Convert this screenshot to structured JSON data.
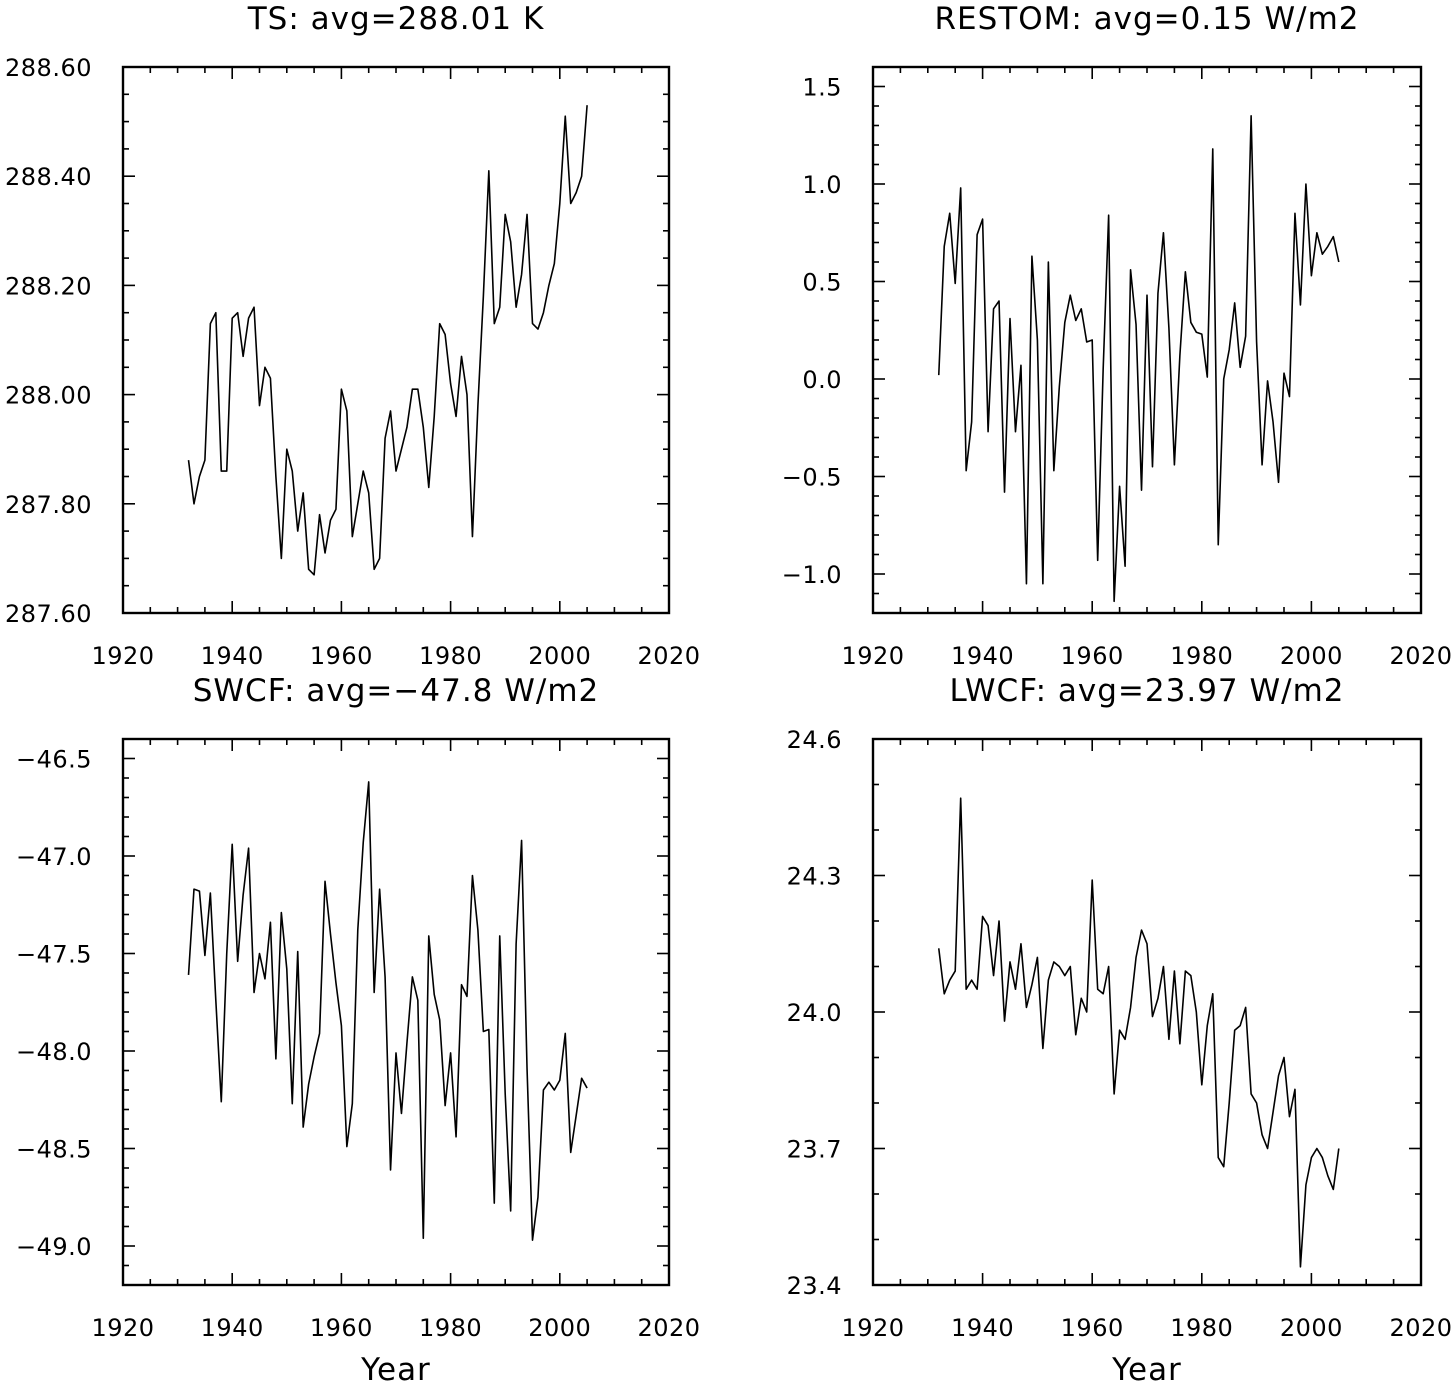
{
  "chart_data": [
    {
      "type": "line",
      "title": "TS: avg=288.01 K",
      "xlabel": "",
      "ylabel": "",
      "xlim": [
        1920,
        2020
      ],
      "ylim": [
        287.6,
        288.6
      ],
      "x_ticks": [
        1920,
        1940,
        1960,
        1980,
        2000,
        2020
      ],
      "x_tick_labels": [
        "1920",
        "1940",
        "1960",
        "1980",
        "2000",
        "2020"
      ],
      "y_ticks": [
        287.6,
        287.8,
        288.0,
        288.2,
        288.4,
        288.6
      ],
      "y_tick_labels": [
        "287.60",
        "287.80",
        "288.00",
        "288.20",
        "288.40",
        "288.60"
      ],
      "y_minor_step": 0.05,
      "x": [
        1932,
        1933,
        1934,
        1935,
        1936,
        1937,
        1938,
        1939,
        1940,
        1941,
        1942,
        1943,
        1944,
        1945,
        1946,
        1947,
        1948,
        1949,
        1950,
        1951,
        1952,
        1953,
        1954,
        1955,
        1956,
        1957,
        1958,
        1959,
        1960,
        1961,
        1962,
        1963,
        1964,
        1965,
        1966,
        1967,
        1968,
        1969,
        1970,
        1971,
        1972,
        1973,
        1974,
        1975,
        1976,
        1977,
        1978,
        1979,
        1980,
        1981,
        1982,
        1983,
        1984,
        1985,
        1986,
        1987,
        1988,
        1989,
        1990,
        1991,
        1992,
        1993,
        1994,
        1995,
        1996,
        1997,
        1998,
        1999,
        2000,
        2001,
        2002,
        2003,
        2004,
        2005
      ],
      "values": [
        287.88,
        287.8,
        287.85,
        287.88,
        288.13,
        288.15,
        287.86,
        287.86,
        288.14,
        288.15,
        288.07,
        288.14,
        288.16,
        287.98,
        288.05,
        288.03,
        287.85,
        287.7,
        287.9,
        287.86,
        287.75,
        287.82,
        287.68,
        287.67,
        287.78,
        287.71,
        287.77,
        287.79,
        288.01,
        287.97,
        287.74,
        287.8,
        287.86,
        287.82,
        287.68,
        287.7,
        287.92,
        287.97,
        287.86,
        287.9,
        287.94,
        288.01,
        288.01,
        287.94,
        287.83,
        287.96,
        288.13,
        288.11,
        288.02,
        287.96,
        288.07,
        288.0,
        287.74,
        287.98,
        288.18,
        288.41,
        288.13,
        288.16,
        288.33,
        288.28,
        288.16,
        288.22,
        288.33,
        288.13,
        288.12,
        288.15,
        288.2,
        288.24,
        288.35,
        288.51,
        288.35,
        288.37,
        288.4,
        288.53
      ]
    },
    {
      "type": "line",
      "title": "RESTOM: avg=0.15 W/m2",
      "xlabel": "",
      "ylabel": "",
      "xlim": [
        1920,
        2020
      ],
      "ylim": [
        -1.2,
        1.6
      ],
      "x_ticks": [
        1920,
        1940,
        1960,
        1980,
        2000,
        2020
      ],
      "x_tick_labels": [
        "1920",
        "1940",
        "1960",
        "1980",
        "2000",
        "2020"
      ],
      "y_ticks": [
        -1.0,
        -0.5,
        0.0,
        0.5,
        1.0,
        1.5
      ],
      "y_tick_labels": [
        "−1.0",
        "−0.5",
        "0.0",
        "0.5",
        "1.0",
        "1.5"
      ],
      "y_minor_step": 0.1,
      "x": [
        1932,
        1933,
        1934,
        1935,
        1936,
        1937,
        1938,
        1939,
        1940,
        1941,
        1942,
        1943,
        1944,
        1945,
        1946,
        1947,
        1948,
        1949,
        1950,
        1951,
        1952,
        1953,
        1954,
        1955,
        1956,
        1957,
        1958,
        1959,
        1960,
        1961,
        1962,
        1963,
        1964,
        1965,
        1966,
        1967,
        1968,
        1969,
        1970,
        1971,
        1972,
        1973,
        1974,
        1975,
        1976,
        1977,
        1978,
        1979,
        1980,
        1981,
        1982,
        1983,
        1984,
        1985,
        1986,
        1987,
        1988,
        1989,
        1990,
        1991,
        1992,
        1993,
        1994,
        1995,
        1996,
        1997,
        1998,
        1999,
        2000,
        2001,
        2002,
        2003,
        2004,
        2005
      ],
      "values": [
        0.02,
        0.68,
        0.85,
        0.49,
        0.98,
        -0.47,
        -0.22,
        0.74,
        0.82,
        -0.27,
        0.36,
        0.4,
        -0.58,
        0.31,
        -0.27,
        0.07,
        -1.05,
        0.63,
        0.2,
        -1.05,
        0.6,
        -0.47,
        -0.04,
        0.29,
        0.43,
        0.3,
        0.36,
        0.19,
        0.2,
        -0.93,
        0.05,
        0.84,
        -1.14,
        -0.55,
        -0.96,
        0.56,
        0.28,
        -0.57,
        0.43,
        -0.45,
        0.44,
        0.75,
        0.26,
        -0.44,
        0.12,
        0.55,
        0.29,
        0.24,
        0.23,
        0.01,
        1.18,
        -0.85,
        0.0,
        0.15,
        0.39,
        0.06,
        0.22,
        1.35,
        0.19,
        -0.44,
        -0.01,
        -0.22,
        -0.53,
        0.03,
        -0.09,
        0.85,
        0.38,
        1.0,
        0.53,
        0.75,
        0.64,
        0.68,
        0.73,
        0.6
      ]
    },
    {
      "type": "line",
      "title": "SWCF: avg=−47.8 W/m2",
      "xlabel": "Year",
      "ylabel": "",
      "xlim": [
        1920,
        2020
      ],
      "ylim": [
        -49.2,
        -46.4
      ],
      "x_ticks": [
        1920,
        1940,
        1960,
        1980,
        2000,
        2020
      ],
      "x_tick_labels": [
        "1920",
        "1940",
        "1960",
        "1980",
        "2000",
        "2020"
      ],
      "y_ticks": [
        -49.0,
        -48.5,
        -48.0,
        -47.5,
        -47.0,
        -46.5
      ],
      "y_tick_labels": [
        "−49.0",
        "−48.5",
        "−48.0",
        "−47.5",
        "−47.0",
        "−46.5"
      ],
      "y_minor_step": 0.1,
      "x": [
        1932,
        1933,
        1934,
        1935,
        1936,
        1937,
        1938,
        1939,
        1940,
        1941,
        1942,
        1943,
        1944,
        1945,
        1946,
        1947,
        1948,
        1949,
        1950,
        1951,
        1952,
        1953,
        1954,
        1955,
        1956,
        1957,
        1958,
        1959,
        1960,
        1961,
        1962,
        1963,
        1964,
        1965,
        1966,
        1967,
        1968,
        1969,
        1970,
        1971,
        1972,
        1973,
        1974,
        1975,
        1976,
        1977,
        1978,
        1979,
        1980,
        1981,
        1982,
        1983,
        1984,
        1985,
        1986,
        1987,
        1988,
        1989,
        1990,
        1991,
        1992,
        1993,
        1994,
        1995,
        1996,
        1997,
        1998,
        1999,
        2000,
        2001,
        2002,
        2003,
        2004,
        2005
      ],
      "values": [
        -47.61,
        -47.17,
        -47.18,
        -47.51,
        -47.19,
        -47.74,
        -48.26,
        -47.5,
        -46.94,
        -47.54,
        -47.2,
        -46.96,
        -47.7,
        -47.5,
        -47.63,
        -47.34,
        -48.04,
        -47.29,
        -47.58,
        -48.27,
        -47.49,
        -48.39,
        -48.17,
        -48.03,
        -47.91,
        -47.13,
        -47.4,
        -47.65,
        -47.87,
        -48.49,
        -48.27,
        -47.38,
        -46.93,
        -46.62,
        -47.7,
        -47.17,
        -47.62,
        -48.61,
        -48.01,
        -48.32,
        -47.96,
        -47.62,
        -47.74,
        -48.96,
        -47.41,
        -47.71,
        -47.84,
        -48.28,
        -48.01,
        -48.44,
        -47.66,
        -47.72,
        -47.1,
        -47.38,
        -47.9,
        -47.89,
        -48.78,
        -47.41,
        -48.22,
        -48.82,
        -47.45,
        -46.92,
        -48.09,
        -48.97,
        -48.75,
        -48.2,
        -48.16,
        -48.2,
        -48.15,
        -47.91,
        -48.52,
        -48.33,
        -48.14,
        -48.19
      ]
    },
    {
      "type": "line",
      "title": "LWCF: avg=23.97 W/m2",
      "xlabel": "Year",
      "ylabel": "",
      "xlim": [
        1920,
        2020
      ],
      "ylim": [
        23.4,
        24.6
      ],
      "x_ticks": [
        1920,
        1940,
        1960,
        1980,
        2000,
        2020
      ],
      "x_tick_labels": [
        "1920",
        "1940",
        "1960",
        "1980",
        "2000",
        "2020"
      ],
      "y_ticks": [
        23.4,
        23.7,
        24.0,
        24.3,
        24.6
      ],
      "y_tick_labels": [
        "23.4",
        "23.7",
        "24.0",
        "24.3",
        "24.6"
      ],
      "y_minor_step": 0.1,
      "x": [
        1932,
        1933,
        1934,
        1935,
        1936,
        1937,
        1938,
        1939,
        1940,
        1941,
        1942,
        1943,
        1944,
        1945,
        1946,
        1947,
        1948,
        1949,
        1950,
        1951,
        1952,
        1953,
        1954,
        1955,
        1956,
        1957,
        1958,
        1959,
        1960,
        1961,
        1962,
        1963,
        1964,
        1965,
        1966,
        1967,
        1968,
        1969,
        1970,
        1971,
        1972,
        1973,
        1974,
        1975,
        1976,
        1977,
        1978,
        1979,
        1980,
        1981,
        1982,
        1983,
        1984,
        1985,
        1986,
        1987,
        1988,
        1989,
        1990,
        1991,
        1992,
        1993,
        1994,
        1995,
        1996,
        1997,
        1998,
        1999,
        2000,
        2001,
        2002,
        2003,
        2004,
        2005
      ],
      "values": [
        24.14,
        24.04,
        24.07,
        24.09,
        24.47,
        24.05,
        24.07,
        24.05,
        24.21,
        24.19,
        24.08,
        24.2,
        23.98,
        24.11,
        24.05,
        24.15,
        24.01,
        24.06,
        24.12,
        23.92,
        24.07,
        24.11,
        24.1,
        24.08,
        24.1,
        23.95,
        24.03,
        24.0,
        24.29,
        24.05,
        24.04,
        24.1,
        23.82,
        23.96,
        23.94,
        24.01,
        24.12,
        24.18,
        24.15,
        23.99,
        24.03,
        24.1,
        23.94,
        24.09,
        23.93,
        24.09,
        24.08,
        24.0,
        23.84,
        23.97,
        24.04,
        23.68,
        23.66,
        23.8,
        23.96,
        23.97,
        24.01,
        23.82,
        23.8,
        23.73,
        23.7,
        23.78,
        23.86,
        23.9,
        23.77,
        23.83,
        23.44,
        23.62,
        23.68,
        23.7,
        23.68,
        23.64,
        23.61,
        23.7
      ]
    }
  ]
}
